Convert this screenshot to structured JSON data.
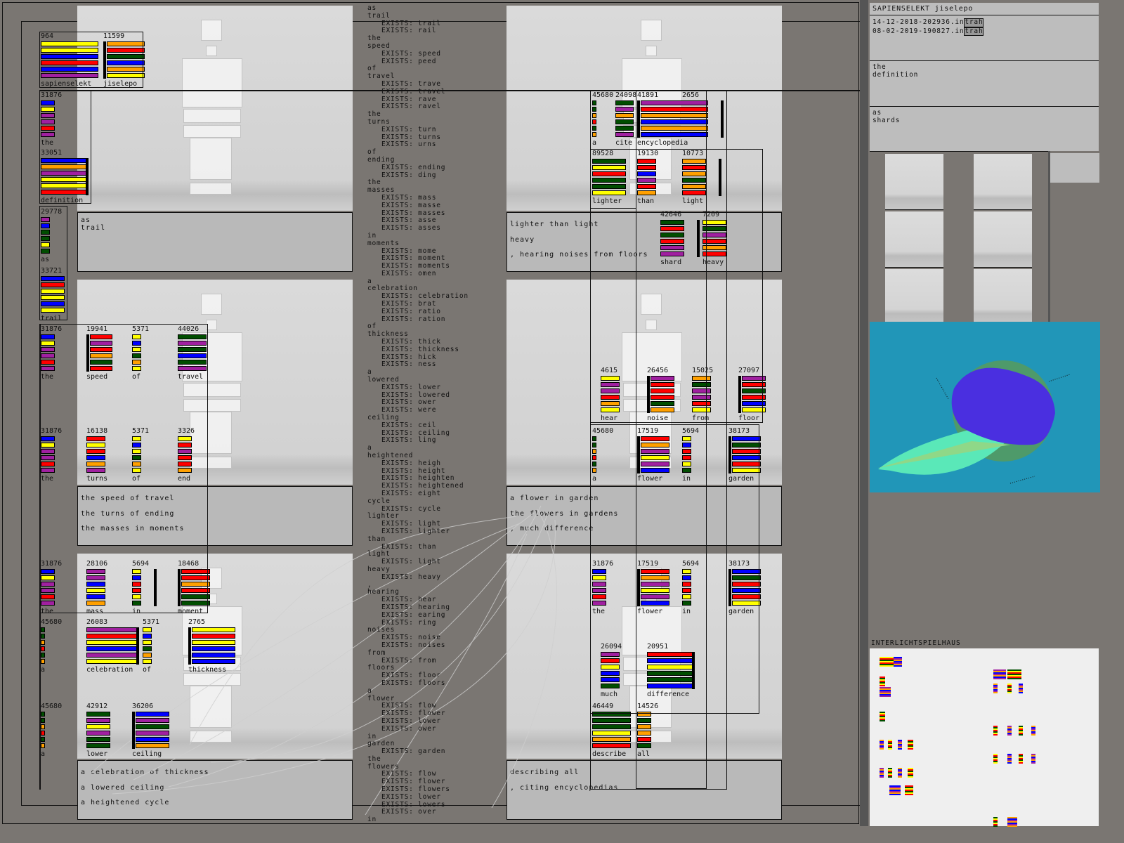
{
  "palette": {
    "Y": "#ffff00",
    "B": "#0000ff",
    "R": "#ff0000",
    "P": "#a020a0",
    "G": "#004d00",
    "O": "#ffa000"
  },
  "colors": {
    "background": "#7a7672",
    "scene": "#d4d4d4",
    "textbox": "#b9b9b9",
    "viz_background": "#2196b8",
    "viz_sphere": "#4a2fe0",
    "viz_sphere_back": "#4e9a6a",
    "viz_cone": "#5ae8b8"
  },
  "center_words": [
    [
      "as",
      0
    ],
    [
      "trail",
      0
    ],
    [
      "EXISTS: trail",
      1
    ],
    [
      "EXISTS: rail",
      1
    ],
    [
      "the",
      0
    ],
    [
      "speed",
      0
    ],
    [
      "EXISTS: speed",
      1
    ],
    [
      "EXISTS: peed",
      1
    ],
    [
      "of",
      0
    ],
    [
      "travel",
      0
    ],
    [
      "EXISTS: trave",
      1
    ],
    [
      "EXISTS: travel",
      1
    ],
    [
      "EXISTS: rave",
      1
    ],
    [
      "EXISTS: ravel",
      1
    ],
    [
      "the",
      0
    ],
    [
      "turns",
      0
    ],
    [
      "EXISTS: turn",
      1
    ],
    [
      "EXISTS: turns",
      1
    ],
    [
      "EXISTS: urns",
      1
    ],
    [
      "of",
      0
    ],
    [
      "ending",
      0
    ],
    [
      "EXISTS: ending",
      1
    ],
    [
      "EXISTS: ding",
      1
    ],
    [
      "the",
      0
    ],
    [
      "masses",
      0
    ],
    [
      "EXISTS: mass",
      1
    ],
    [
      "EXISTS: masse",
      1
    ],
    [
      "EXISTS: masses",
      1
    ],
    [
      "EXISTS: asse",
      1
    ],
    [
      "EXISTS: asses",
      1
    ],
    [
      "in",
      0
    ],
    [
      "moments",
      0
    ],
    [
      "EXISTS: mome",
      1
    ],
    [
      "EXISTS: moment",
      1
    ],
    [
      "EXISTS: moments",
      1
    ],
    [
      "EXISTS: omen",
      1
    ],
    [
      "a",
      0
    ],
    [
      "celebration",
      0
    ],
    [
      "EXISTS: celebration",
      1
    ],
    [
      "EXISTS: brat",
      1
    ],
    [
      "EXISTS: ratio",
      1
    ],
    [
      "EXISTS: ration",
      1
    ],
    [
      "of",
      0
    ],
    [
      "thickness",
      0
    ],
    [
      "EXISTS: thick",
      1
    ],
    [
      "EXISTS: thickness",
      1
    ],
    [
      "EXISTS: hick",
      1
    ],
    [
      "EXISTS: ness",
      1
    ],
    [
      "a",
      0
    ],
    [
      "lowered",
      0
    ],
    [
      "EXISTS: lower",
      1
    ],
    [
      "EXISTS: lowered",
      1
    ],
    [
      "EXISTS: ower",
      1
    ],
    [
      "EXISTS: were",
      1
    ],
    [
      "ceiling",
      0
    ],
    [
      "EXISTS: ceil",
      1
    ],
    [
      "EXISTS: ceiling",
      1
    ],
    [
      "EXISTS: ling",
      1
    ],
    [
      "a",
      0
    ],
    [
      "heightened",
      0
    ],
    [
      "EXISTS: heigh",
      1
    ],
    [
      "EXISTS: height",
      1
    ],
    [
      "EXISTS: heighten",
      1
    ],
    [
      "EXISTS: heightened",
      1
    ],
    [
      "EXISTS: eight",
      1
    ],
    [
      "cycle",
      0
    ],
    [
      "EXISTS: cycle",
      1
    ],
    [
      "lighter",
      0
    ],
    [
      "EXISTS: light",
      1
    ],
    [
      "EXISTS: lighter",
      1
    ],
    [
      "than",
      0
    ],
    [
      "EXISTS: than",
      1
    ],
    [
      "light",
      0
    ],
    [
      "EXISTS: light",
      1
    ],
    [
      "heavy",
      0
    ],
    [
      "EXISTS: heavy",
      1
    ],
    [
      ",",
      0
    ],
    [
      "hearing",
      0
    ],
    [
      "EXISTS: hear",
      1
    ],
    [
      "EXISTS: hearing",
      1
    ],
    [
      "EXISTS: earing",
      1
    ],
    [
      "EXISTS: ring",
      1
    ],
    [
      "noises",
      0
    ],
    [
      "EXISTS: noise",
      1
    ],
    [
      "EXISTS: noises",
      1
    ],
    [
      "from",
      0
    ],
    [
      "EXISTS: from",
      1
    ],
    [
      "floors",
      0
    ],
    [
      "EXISTS: floor",
      1
    ],
    [
      "EXISTS: floors",
      1
    ],
    [
      "a",
      0
    ],
    [
      "flower",
      0
    ],
    [
      "EXISTS: flow",
      1
    ],
    [
      "EXISTS: flower",
      1
    ],
    [
      "EXISTS: lower",
      1
    ],
    [
      "EXISTS: ower",
      1
    ],
    [
      "in",
      0
    ],
    [
      "garden",
      0
    ],
    [
      "EXISTS: garden",
      1
    ],
    [
      "the",
      0
    ],
    [
      "flowers",
      0
    ],
    [
      "EXISTS: flow",
      1
    ],
    [
      "EXISTS: flower",
      1
    ],
    [
      "EXISTS: flowers",
      1
    ],
    [
      "EXISTS: lower",
      1
    ],
    [
      "EXISTS: lowers",
      1
    ],
    [
      "EXISTS: over",
      1
    ],
    [
      "in",
      0
    ]
  ],
  "text_boxes": [
    [
      "as",
      "trail"
    ],
    [
      "the speed of travel",
      "the turns of ending",
      "the masses in moments"
    ],
    [
      "a celebration of thickness",
      "a lowered ceiling",
      "a heightened cycle"
    ],
    [
      "lighter than light",
      "heavy",
      ", hearing noises from floors"
    ],
    [
      "a flower in garden",
      "the flowers in gardens",
      ", much difference"
    ],
    [
      "describing all",
      ", citing encyclopedias"
    ]
  ],
  "word_blocks": [
    {
      "num": "964",
      "label": "sapienselekt",
      "colors": "YYBRBP",
      "edge": ""
    },
    {
      "num": "11599",
      "label": "jiselepo",
      "colors": "ORGBOY",
      "edge": "left"
    },
    {
      "num": "31876",
      "label": "the",
      "colors": "BYPPRP",
      "edge": ""
    },
    {
      "num": "33051",
      "label": "definition",
      "colors": "BOPYYR",
      "edge": "right"
    },
    {
      "num": "29778",
      "label": "as",
      "colors": "PBGGYG",
      "edge": ""
    },
    {
      "num": "33721",
      "label": "trail",
      "colors": "BRYYBY",
      "edge": ""
    },
    {
      "num": "31876",
      "label": "the",
      "colors": "BYPPRP",
      "edge": ""
    },
    {
      "num": "19941",
      "label": "speed",
      "colors": "RPROGR",
      "edge": "left"
    },
    {
      "num": "5371",
      "label": "of",
      "colors": "YBYGOY",
      "edge": ""
    },
    {
      "num": "44026",
      "label": "travel",
      "colors": "GPGBGP",
      "edge": ""
    },
    {
      "num": "31876",
      "label": "the",
      "colors": "BYPPRP",
      "edge": ""
    },
    {
      "num": "16138",
      "label": "turns",
      "colors": "RYRBOP",
      "edge": ""
    },
    {
      "num": "5371",
      "label": "of",
      "colors": "YBYGOY",
      "edge": ""
    },
    {
      "num": "3326",
      "label": "end",
      "colors": "YRPRRO",
      "edge": ""
    },
    {
      "num": "31876",
      "label": "the",
      "colors": "BYPPRP",
      "edge": ""
    },
    {
      "num": "28106",
      "label": "mass",
      "colors": "PPBYBO",
      "edge": ""
    },
    {
      "num": "5694",
      "label": "in",
      "colors": "YBRRYG",
      "edge": "far"
    },
    {
      "num": "18468",
      "label": "moment",
      "colors": "RRORGG",
      "edge": "left"
    },
    {
      "num": "45680",
      "label": "a",
      "colors": "GGORGO",
      "edge": ""
    },
    {
      "num": "26083",
      "label": "celebration",
      "colors": "PRYBPY",
      "edge": "right"
    },
    {
      "num": "5371",
      "label": "of",
      "colors": "YBYGOY",
      "edge": ""
    },
    {
      "num": "2765",
      "label": "thickness",
      "colors": "YRYBBB",
      "edge": "left"
    },
    {
      "num": "45680",
      "label": "a",
      "colors": "GGORGO",
      "edge": ""
    },
    {
      "num": "42912",
      "label": "lower",
      "colors": "GPYPGG",
      "edge": ""
    },
    {
      "num": "36206",
      "label": "ceiling",
      "colors": "BPGPBO",
      "edge": "left"
    },
    {
      "num": "45680",
      "label": "a",
      "colors": "GGORGO",
      "edge": ""
    },
    {
      "num": "24098",
      "label": "cite",
      "colors": "GPOGGP",
      "edge": ""
    },
    {
      "num": "41891",
      "label": "encyclopedia",
      "colors": "PROBOB",
      "edge": "left"
    },
    {
      "num": "2656",
      "label": "",
      "colors": "",
      "edge": "far"
    },
    {
      "num": "89528",
      "label": "lighter",
      "colors": "GYRGGY",
      "edge": ""
    },
    {
      "num": "19130",
      "label": "than",
      "colors": "RRBPRO",
      "edge": ""
    },
    {
      "num": "10773",
      "label": "light",
      "colors": "OROGOR",
      "edge": "far"
    },
    {
      "num": "42646",
      "label": "shard",
      "colors": "GRGRPP",
      "edge": "far"
    },
    {
      "num": "7209",
      "label": "heavy",
      "colors": "YGPROR",
      "edge": ""
    },
    {
      "num": "4615",
      "label": "hear",
      "colors": "YPPROY",
      "edge": ""
    },
    {
      "num": "26456",
      "label": "noise",
      "colors": "PRRRGO",
      "edge": "left"
    },
    {
      "num": "15025",
      "label": "from",
      "colors": "OGPPRY",
      "edge": ""
    },
    {
      "num": "27097",
      "label": "floor",
      "colors": "PRGRBY",
      "edge": "left"
    },
    {
      "num": "45680",
      "label": "a",
      "colors": "GGORGO",
      "edge": ""
    },
    {
      "num": "17519",
      "label": "flower",
      "colors": "ROPYPB",
      "edge": "left"
    },
    {
      "num": "5694",
      "label": "in",
      "colors": "YBRRYG",
      "edge": ""
    },
    {
      "num": "38173",
      "label": "garden",
      "colors": "BGRBRY",
      "edge": "left"
    },
    {
      "num": "31876",
      "label": "the",
      "colors": "BYPPRP",
      "edge": ""
    },
    {
      "num": "17519",
      "label": "flower",
      "colors": "ROPYPB",
      "edge": "left"
    },
    {
      "num": "5694",
      "label": "in",
      "colors": "YBRRYG",
      "edge": ""
    },
    {
      "num": "38173",
      "label": "garden",
      "colors": "BGRBRY",
      "edge": "left"
    },
    {
      "num": "26094",
      "label": "much",
      "colors": "PRYBBG",
      "edge": ""
    },
    {
      "num": "20951",
      "label": "difference",
      "colors": "RBYGGB",
      "edge": "right"
    },
    {
      "num": "46449",
      "label": "describe",
      "colors": "GGGYOR",
      "edge": ""
    },
    {
      "num": "14526",
      "label": "all",
      "colors": "OGOORG",
      "edge": ""
    }
  ],
  "right_panel": {
    "title": "SAPIENSELEKT jiselepo",
    "files": [
      {
        "name": "14-12-2018-202936.in",
        "ext": "trah"
      },
      {
        "name": "08-02-2019-190827.in",
        "ext": "trah"
      }
    ],
    "definition": [
      "the",
      "definition"
    ],
    "shards": [
      "as",
      "shards"
    ],
    "map_title": "INTERLICHTSPIELHAUS"
  }
}
